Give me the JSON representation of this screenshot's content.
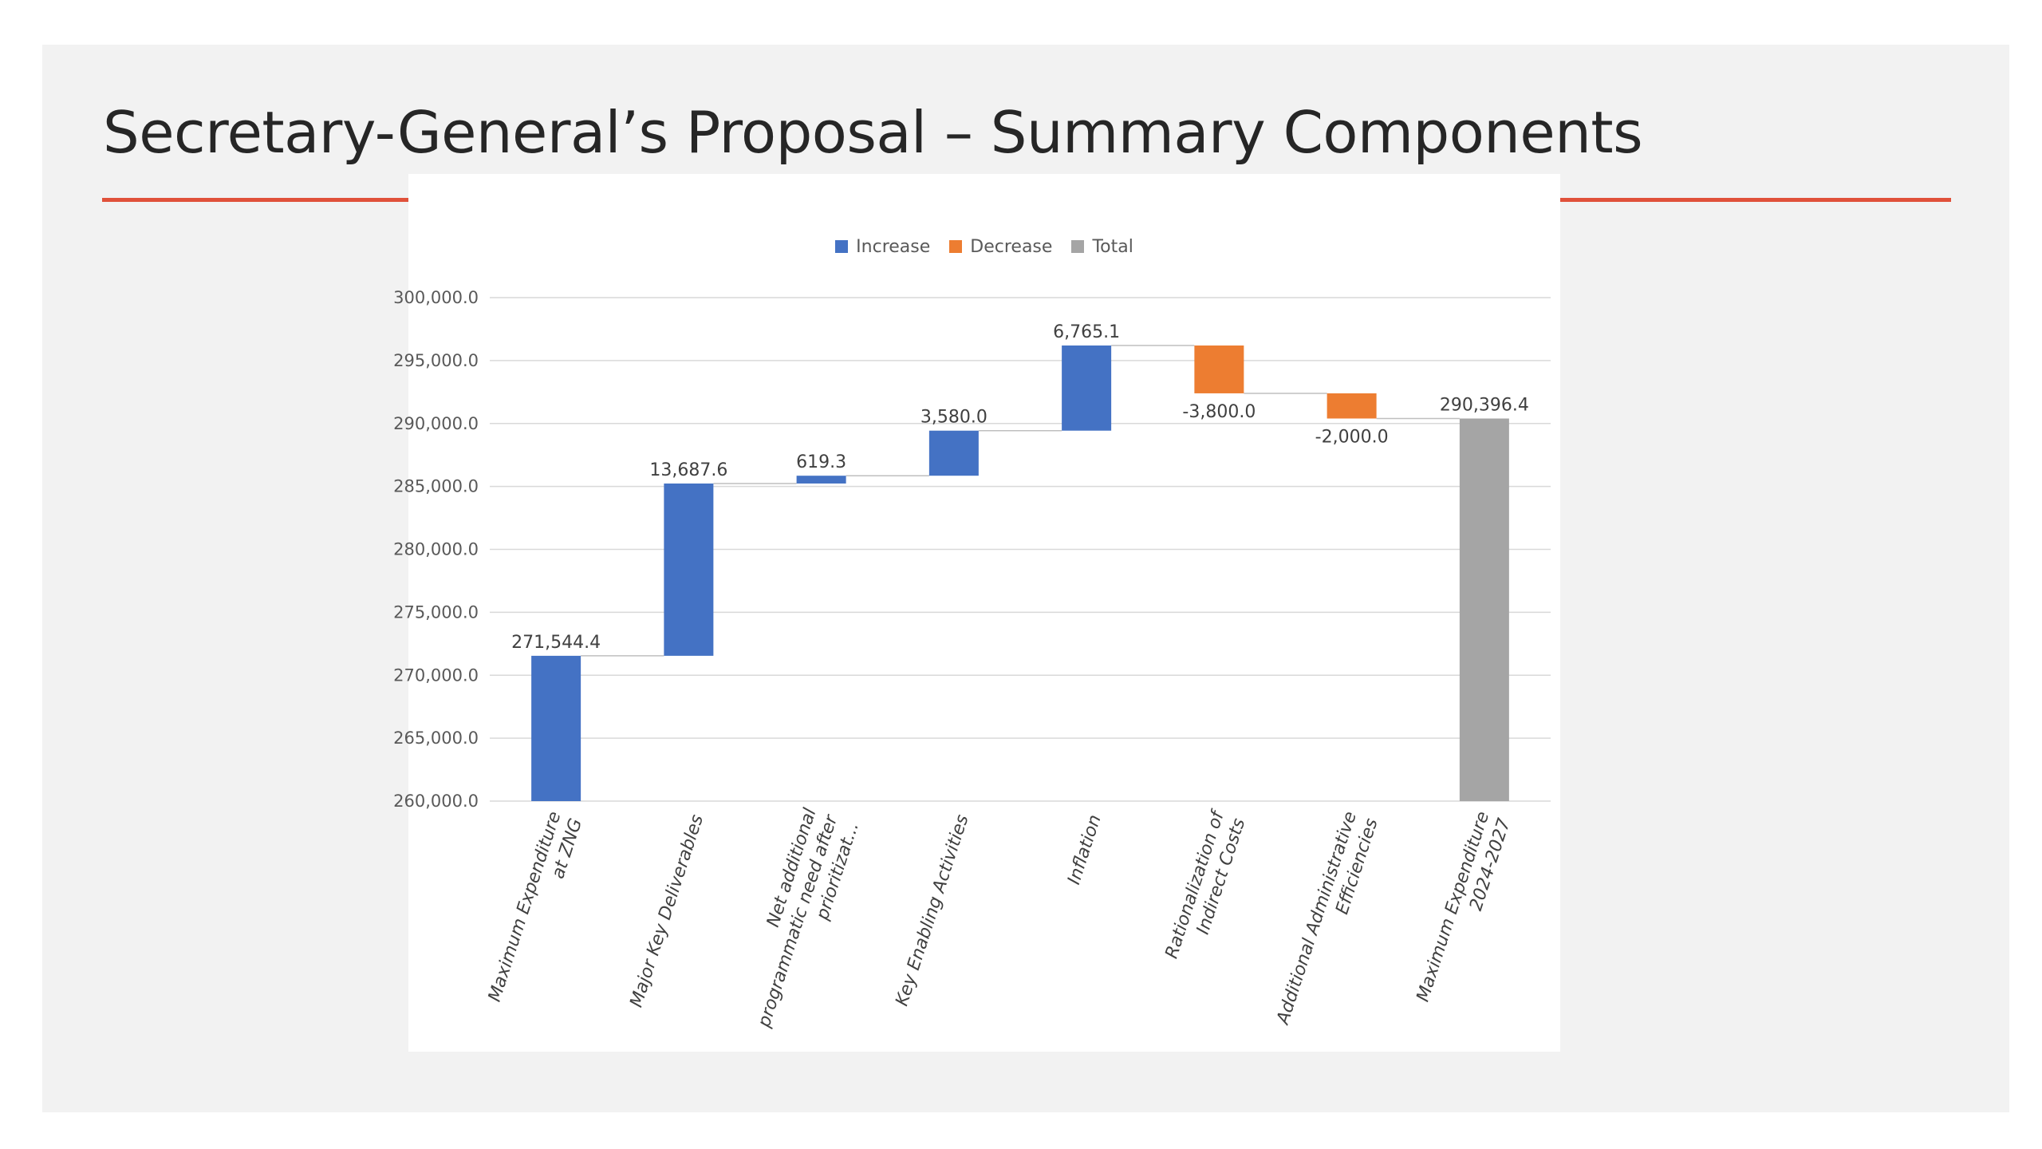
{
  "slide": {
    "title": "Secretary-General’s Proposal – Summary Components",
    "accent_color": "#e0513a"
  },
  "chart_data": {
    "type": "waterfall",
    "title": "",
    "xlabel": "",
    "ylabel": "",
    "ylim": [
      260000,
      300000
    ],
    "ytick_step": 5000,
    "grid": true,
    "legend_position": "top-center",
    "legend": [
      {
        "key": "increase",
        "label": "Increase",
        "color": "#4472c4"
      },
      {
        "key": "decrease",
        "label": "Decrease",
        "color": "#ed7d31"
      },
      {
        "key": "total",
        "label": "Total",
        "color": "#a5a5a5"
      }
    ],
    "yticks": [
      "260,000.0",
      "265,000.0",
      "270,000.0",
      "275,000.0",
      "280,000.0",
      "285,000.0",
      "290,000.0",
      "295,000.0",
      "300,000.0"
    ],
    "categories": [
      {
        "lines": [
          "Maximum Expenditure",
          "at ZNG"
        ],
        "value": 271544.4,
        "label": "271,544.4",
        "kind": "increase",
        "start_at_zero": true
      },
      {
        "lines": [
          "Major Key Deliverables"
        ],
        "value": 13687.6,
        "label": "13,687.6",
        "kind": "increase"
      },
      {
        "lines": [
          "Net additional",
          "programmatic need after",
          "prioritizat..."
        ],
        "value": 619.3,
        "label": "619.3",
        "kind": "increase"
      },
      {
        "lines": [
          "Key Enabling Activities"
        ],
        "value": 3580.0,
        "label": "3,580.0",
        "kind": "increase"
      },
      {
        "lines": [
          "Inflation"
        ],
        "value": 6765.1,
        "label": "6,765.1",
        "kind": "increase"
      },
      {
        "lines": [
          "Rationalization of",
          "Indirect Costs"
        ],
        "value": -3800.0,
        "label": "-3,800.0",
        "kind": "decrease"
      },
      {
        "lines": [
          "Additional Administrative",
          "Efficiencies"
        ],
        "value": -2000.0,
        "label": "-2,000.0",
        "kind": "decrease"
      },
      {
        "lines": [
          "Maximum Expenditure",
          "2024-2027"
        ],
        "value": 290396.4,
        "label": "290,396.4",
        "kind": "total"
      }
    ]
  }
}
